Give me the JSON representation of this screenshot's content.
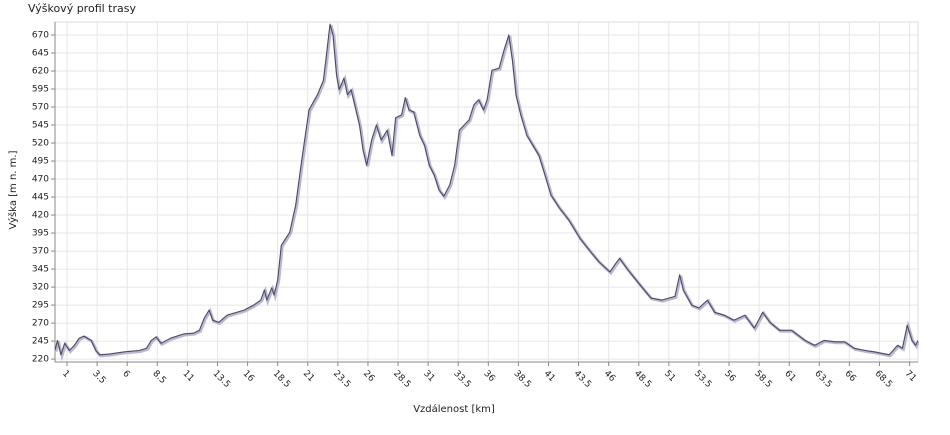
{
  "chart_data": {
    "type": "line",
    "title": "Výškový profil trasy",
    "x_label": "Vzdálenost [km]",
    "y_label": "Výška [m n. m.]",
    "color": "#4a4a6a",
    "grid": true,
    "x": [
      0,
      0.2,
      0.5,
      0.8,
      1.2,
      1.6,
      2.0,
      2.4,
      3.0,
      3.4,
      3.7,
      4.5,
      5.7,
      7.0,
      7.6,
      8.0,
      8.4,
      8.8,
      9.6,
      10.7,
      11.5,
      12.0,
      12.4,
      12.8,
      13.1,
      13.6,
      14.3,
      14.9,
      15.7,
      16.5,
      17.1,
      17.4,
      17.6,
      18.0,
      18.2,
      18.5,
      18.8,
      19.5,
      20.0,
      20.5,
      21.1,
      21.8,
      22.3,
      22.6,
      22.85,
      23.1,
      23.4,
      23.6,
      24.0,
      24.3,
      24.6,
      24.9,
      25.3,
      25.6,
      25.9,
      26.3,
      26.7,
      27.1,
      27.6,
      28.0,
      28.3,
      28.8,
      29.1,
      29.4,
      29.8,
      30.3,
      30.7,
      31.1,
      31.5,
      31.9,
      32.3,
      32.8,
      33.2,
      33.6,
      34.0,
      34.4,
      34.8,
      35.2,
      35.6,
      35.9,
      36.3,
      36.9,
      37.3,
      37.7,
      38.0,
      38.3,
      38.7,
      39.2,
      39.7,
      40.2,
      40.7,
      41.2,
      41.9,
      42.7,
      43.6,
      44.4,
      45.2,
      46.1,
      46.5,
      46.9,
      47.6,
      48.6,
      49.5,
      50.4,
      51.5,
      51.9,
      52.2,
      52.9,
      53.5,
      54.2,
      54.8,
      55.6,
      56.4,
      57.3,
      58.1,
      58.8,
      59.4,
      60.2,
      61.2,
      62.3,
      63.1,
      63.9,
      64.8,
      65.6,
      66.4,
      67.3,
      68.1,
      69.3,
      70.0,
      70.4,
      70.8,
      71.2,
      71.5,
      71.7
    ],
    "values": [
      232,
      246,
      226,
      242,
      232,
      239,
      249,
      252,
      246,
      232,
      226,
      227,
      230,
      232,
      235,
      246,
      251,
      242,
      249,
      255,
      256,
      260,
      277,
      288,
      274,
      271,
      281,
      284,
      288,
      295,
      302,
      316,
      302,
      319,
      309,
      330,
      378,
      396,
      434,
      496,
      566,
      587,
      607,
      649,
      685,
      670,
      614,
      594,
      610,
      587,
      594,
      573,
      545,
      510,
      489,
      524,
      545,
      524,
      538,
      503,
      555,
      559,
      583,
      566,
      563,
      531,
      517,
      489,
      476,
      455,
      446,
      462,
      489,
      538,
      545,
      552,
      573,
      580,
      566,
      580,
      621,
      624,
      649,
      670,
      635,
      587,
      559,
      531,
      517,
      503,
      476,
      448,
      430,
      413,
      388,
      371,
      355,
      341,
      351,
      360,
      344,
      323,
      305,
      302,
      307,
      337,
      316,
      295,
      291,
      302,
      285,
      281,
      274,
      281,
      263,
      285,
      271,
      260,
      260,
      246,
      239,
      246,
      244,
      244,
      235,
      232,
      230,
      226,
      239,
      235,
      267,
      246,
      239,
      246
    ],
    "xlim": [
      0,
      71.7
    ],
    "ylim": [
      216,
      688
    ],
    "xticks": [
      1,
      3.5,
      6,
      8.5,
      11,
      13.5,
      16,
      18.5,
      21,
      23.5,
      26,
      28.5,
      31,
      33.5,
      36,
      38.5,
      41,
      43.5,
      46,
      48.5,
      51,
      53.5,
      56,
      58.5,
      61,
      63.5,
      66,
      68.5,
      71
    ],
    "yticks": [
      220,
      245,
      270,
      295,
      320,
      345,
      370,
      395,
      420,
      445,
      470,
      495,
      520,
      545,
      570,
      595,
      620,
      645,
      670
    ]
  }
}
